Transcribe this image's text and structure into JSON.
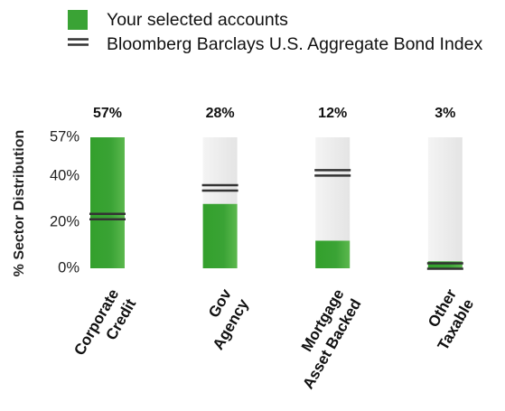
{
  "chart_data": {
    "type": "bar",
    "legend": "top-left",
    "y_label": "% Sector Distribution",
    "categories": [
      [
        "Corporate",
        "Credit"
      ],
      [
        "Gov",
        "Agency"
      ],
      [
        "Mortgage",
        "Asset Backed"
      ],
      [
        "Other",
        "Taxable"
      ]
    ],
    "series": [
      {
        "name": "Your selected accounts",
        "color": "#3aa335",
        "values": [
          57,
          28,
          12,
          3
        ],
        "value_labels": [
          "57%",
          "28%",
          "12%",
          "3%"
        ]
      },
      {
        "name": "Bloomberg Barclays U.S. Aggregate Bond Index",
        "color": "#333333",
        "marker": "double-line",
        "values": [
          22.5,
          35,
          41.5,
          1
        ]
      }
    ],
    "ylim": [
      0,
      57
    ],
    "yticks": [
      {
        "value": 0,
        "label": "0%"
      },
      {
        "value": 20,
        "label": "20%"
      },
      {
        "value": 40,
        "label": "40%"
      },
      {
        "value": 57,
        "label": "57%"
      }
    ]
  }
}
